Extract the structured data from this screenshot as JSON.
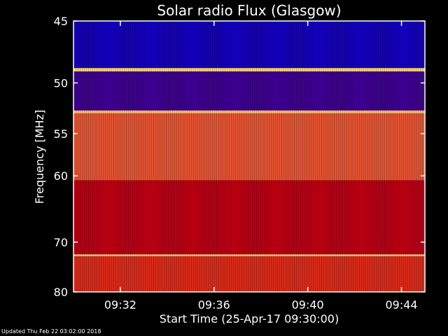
{
  "footer": {
    "updated": "Updated Thu Feb 22 03:02:00 2018"
  },
  "chart_data": {
    "type": "heatmap",
    "title": "Solar radio Flux (Glasgow)",
    "xlabel": "Start Time (25-Apr-17 09:30:00)",
    "ylabel": "Frequency [MHz]",
    "x_ticks": [
      "09:32",
      "09:36",
      "09:40",
      "09:44"
    ],
    "x_tick_minutes": [
      2,
      6,
      10,
      14
    ],
    "xlim_minutes": [
      0,
      15
    ],
    "y_ticks": [
      45,
      50,
      55,
      60,
      70,
      80
    ],
    "ylim": [
      45,
      80
    ],
    "y_scale": "reciprocal",
    "grid": false,
    "colors": {
      "background": "#000000",
      "low": "#0000cc",
      "mid": "#cc0000",
      "high": "#ffd080"
    },
    "bands": [
      {
        "from": 45.0,
        "to": 48.7,
        "level": 0.05
      },
      {
        "from": 48.7,
        "to": 49.0,
        "level": 1.0
      },
      {
        "from": 49.0,
        "to": 52.6,
        "level": 0.15
      },
      {
        "from": 52.6,
        "to": 52.9,
        "level": 0.95
      },
      {
        "from": 52.9,
        "to": 60.6,
        "level": 0.7
      },
      {
        "from": 60.6,
        "to": 72.2,
        "level": 0.45
      },
      {
        "from": 72.2,
        "to": 72.6,
        "level": 0.95
      },
      {
        "from": 72.6,
        "to": 80.0,
        "level": 0.6
      }
    ]
  }
}
